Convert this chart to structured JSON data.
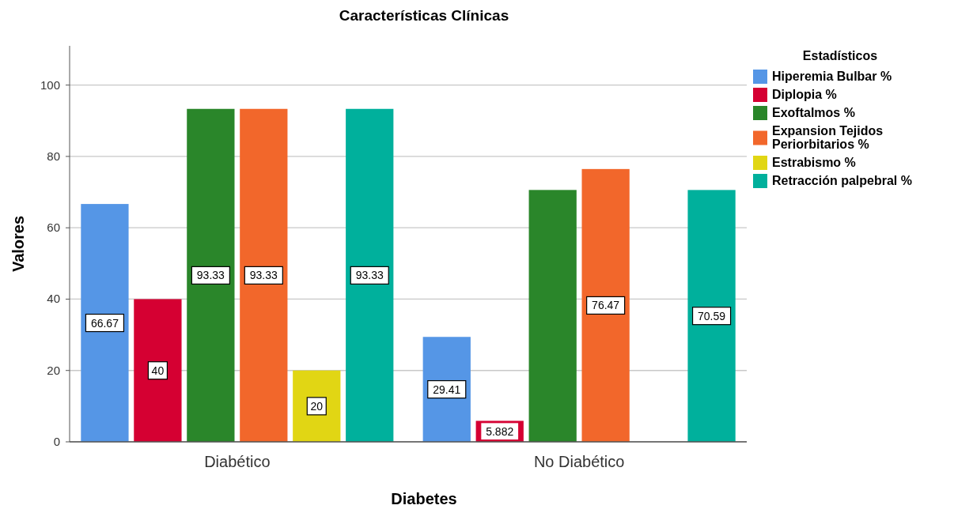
{
  "chart_data": {
    "type": "bar",
    "title": "Características Clínicas",
    "xlabel": "Diabetes",
    "ylabel": "Valores",
    "legend_title": "Estadísticos",
    "categories": [
      "Diabético",
      "No Diabético"
    ],
    "series": [
      {
        "name": "Hiperemia Bulbar %",
        "color": "#5596e6",
        "values": [
          66.67,
          29.41
        ],
        "value_labels": [
          "66.67",
          "29.41"
        ]
      },
      {
        "name": "Diplopia %",
        "color": "#d50032",
        "values": [
          40,
          5.882
        ],
        "value_labels": [
          "40",
          "5.882"
        ]
      },
      {
        "name": "Exoftalmos %",
        "color": "#2a862a",
        "values": [
          93.33,
          70.6
        ],
        "value_labels": [
          "93.33",
          null
        ]
      },
      {
        "name": "Expansion Tejidos Periorbitarios %",
        "color": "#f2672b",
        "values": [
          93.33,
          76.47
        ],
        "value_labels": [
          "93.33",
          "76.47"
        ]
      },
      {
        "name": "Estrabismo %",
        "color": "#e1d614",
        "values": [
          20,
          null
        ],
        "value_labels": [
          "20",
          null
        ]
      },
      {
        "name": "Retracción palpebral %",
        "color": "#00b09c",
        "values": [
          93.33,
          70.59
        ],
        "value_labels": [
          "93.33",
          "70.59"
        ]
      }
    ],
    "ylim": [
      0,
      111
    ],
    "yticks": [
      0,
      20,
      40,
      60,
      80,
      100
    ],
    "grid": "y",
    "legend": "top right"
  }
}
